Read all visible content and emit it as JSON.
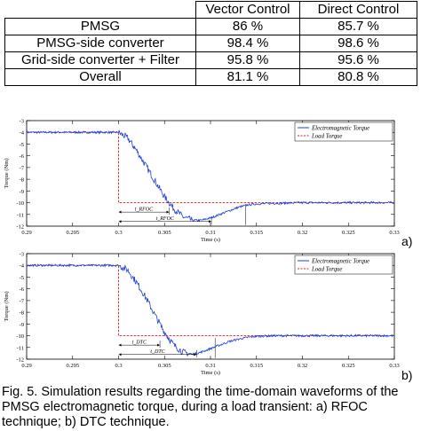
{
  "table": {
    "headers": [
      "",
      "Vector Control",
      "Direct Control"
    ],
    "rows": [
      [
        "PMSG",
        "86 %",
        "85.7 %"
      ],
      [
        "PMSG-side converter",
        "98.4 %",
        "98.6 %"
      ],
      [
        "Grid-side converter + Filter",
        "95.8 %",
        "95.6 %"
      ],
      [
        "Overall",
        "81.1 %",
        "80.8 %"
      ]
    ]
  },
  "plots": [
    {
      "label": "a)",
      "legend": {
        "em": "Electromagnetic Torque",
        "load": "Load Torque"
      },
      "ylabel": "Torque (Nm)",
      "xlabel": "Time (s)",
      "annot1": "t_RFOC",
      "annot2": "t_RFOC"
    },
    {
      "label": "b)",
      "legend": {
        "em": "Electromagnetic Torque",
        "load": "Load Torque"
      },
      "ylabel": "Torque (Nm)",
      "xlabel": "Time (s)",
      "annot1": "t_DTC",
      "annot2": "t_DTC"
    }
  ],
  "chart_data": [
    {
      "type": "line",
      "x_ticks": [
        "0.29",
        "0.295",
        "0.3",
        "0.305",
        "0.31",
        "0.315",
        "0.32",
        "0.325",
        "0.33"
      ],
      "y_ticks": [
        "-3",
        "-4",
        "-5",
        "-6",
        "-7",
        "-8",
        "-9",
        "-10",
        "-11",
        "-12"
      ],
      "xlim": [
        0.29,
        0.33
      ],
      "ylim": [
        -12,
        -3
      ],
      "series": [
        {
          "name": "Electromagnetic Torque",
          "color": "#1f3fd6",
          "x": [
            0.29,
            0.3,
            0.301,
            0.302,
            0.303,
            0.304,
            0.305,
            0.306,
            0.307,
            0.308,
            0.309,
            0.31,
            0.311,
            0.312,
            0.313,
            0.314,
            0.315,
            0.317,
            0.32,
            0.33
          ],
          "y": [
            -4,
            -4,
            -4.5,
            -5.6,
            -6.9,
            -8.2,
            -9.5,
            -10.5,
            -11.2,
            -11.5,
            -11.5,
            -11.3,
            -11.0,
            -10.7,
            -10.4,
            -10.2,
            -10.1,
            -10.05,
            -10,
            -10
          ]
        },
        {
          "name": "Load Torque",
          "color": "#d62020",
          "x": [
            0.29,
            0.3,
            0.3,
            0.33
          ],
          "y": [
            -4,
            -4,
            -10,
            -10
          ]
        }
      ],
      "marks": [
        0.3,
        0.3055,
        0.3101,
        0.3138
      ]
    },
    {
      "type": "line",
      "x_ticks": [
        "0.29",
        "0.295",
        "0.3",
        "0.305",
        "0.31",
        "0.315",
        "0.32",
        "0.325",
        "0.33"
      ],
      "y_ticks": [
        "-3",
        "-4",
        "-5",
        "-6",
        "-7",
        "-8",
        "-9",
        "-10",
        "-11",
        "-12"
      ],
      "xlim": [
        0.29,
        0.33
      ],
      "ylim": [
        -12,
        -3
      ],
      "series": [
        {
          "name": "Electromagnetic Torque",
          "color": "#1f3fd6",
          "x": [
            0.29,
            0.3,
            0.301,
            0.302,
            0.303,
            0.304,
            0.305,
            0.306,
            0.307,
            0.308,
            0.309,
            0.31,
            0.311,
            0.312,
            0.313,
            0.314,
            0.315,
            0.317,
            0.32,
            0.33
          ],
          "y": [
            -4,
            -4,
            -4.4,
            -5.5,
            -6.8,
            -8.3,
            -9.7,
            -10.8,
            -11.4,
            -11.6,
            -11.4,
            -11.1,
            -10.8,
            -10.5,
            -10.3,
            -10.15,
            -10.05,
            -10.0,
            -10,
            -10
          ]
        },
        {
          "name": "Load Torque",
          "color": "#d62020",
          "x": [
            0.29,
            0.3,
            0.3,
            0.33
          ],
          "y": [
            -4,
            -4,
            -10,
            -10
          ]
        }
      ],
      "marks": [
        0.3,
        0.3045,
        0.3085,
        0.3105
      ]
    }
  ],
  "caption": "Fig. 5.   Simulation results regarding the time-domain waveforms of the PMSG electromagnetic torque, during a load transient: a) RFOC technique; b) DTC technique."
}
